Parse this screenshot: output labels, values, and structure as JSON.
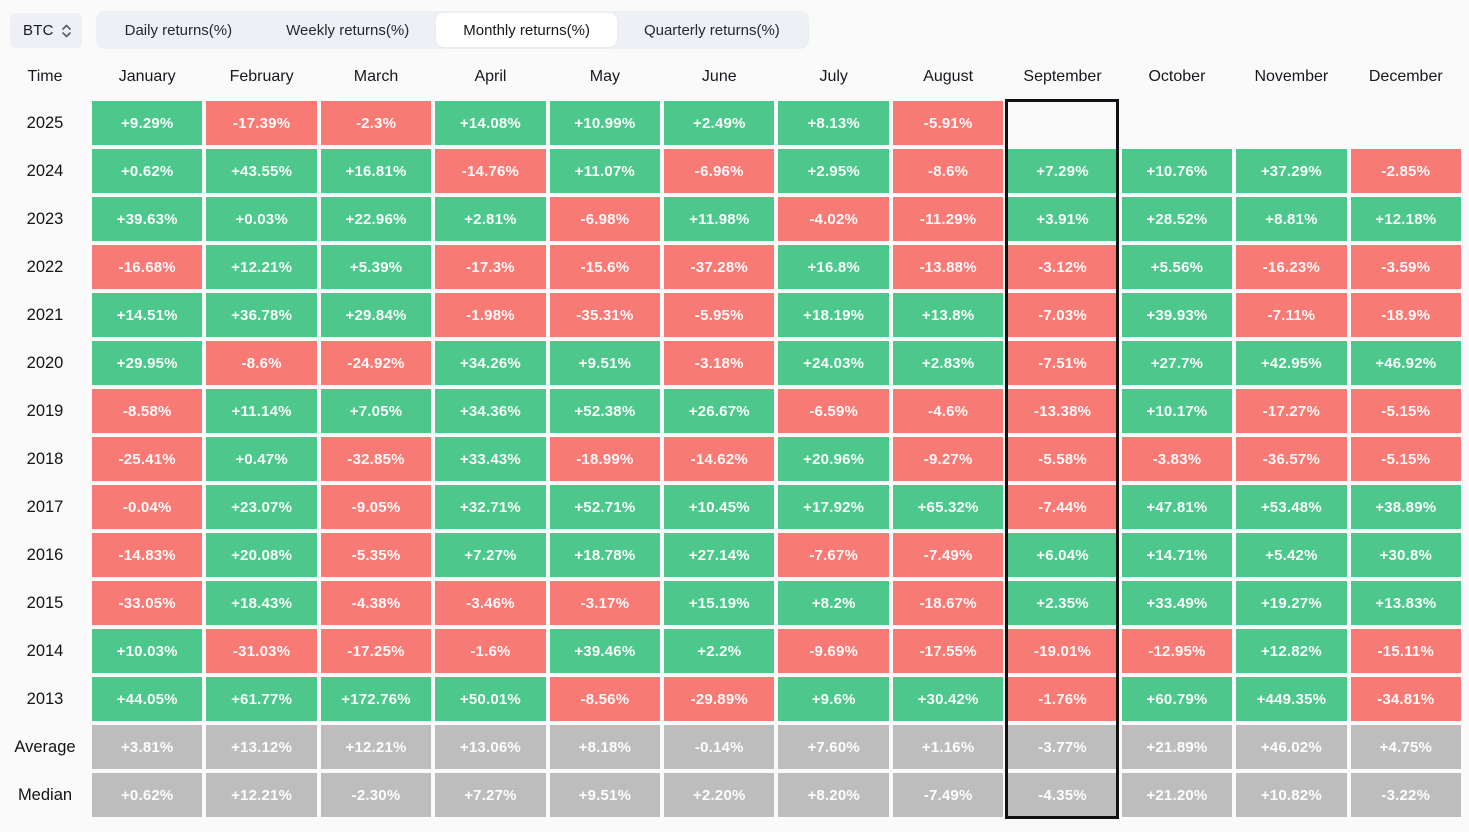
{
  "symbol_selector": {
    "label": "BTC",
    "icon": "up-down-chevron-icon"
  },
  "tabs": [
    {
      "label": "Daily returns(%)",
      "active": false
    },
    {
      "label": "Weekly returns(%)",
      "active": false
    },
    {
      "label": "Monthly returns(%)",
      "active": true
    },
    {
      "label": "Quarterly returns(%)",
      "active": false
    }
  ],
  "chart_data": {
    "type": "heatmap",
    "title": "Monthly returns(%)",
    "row_header": "Time",
    "columns": [
      "January",
      "February",
      "March",
      "April",
      "May",
      "June",
      "July",
      "August",
      "September",
      "October",
      "November",
      "December"
    ],
    "highlighted_column": "September",
    "colors": {
      "positive": "#4ec78c",
      "negative": "#f87a75",
      "summary": "#bdbdbd",
      "highlight_border": "#0f1114"
    },
    "rows": [
      {
        "label": "2025",
        "values": [
          "+9.29%",
          "-17.39%",
          "-2.3%",
          "+14.08%",
          "+10.99%",
          "+2.49%",
          "+8.13%",
          "-5.91%",
          "",
          "",
          "",
          ""
        ]
      },
      {
        "label": "2024",
        "values": [
          "+0.62%",
          "+43.55%",
          "+16.81%",
          "-14.76%",
          "+11.07%",
          "-6.96%",
          "+2.95%",
          "-8.6%",
          "+7.29%",
          "+10.76%",
          "+37.29%",
          "-2.85%"
        ]
      },
      {
        "label": "2023",
        "values": [
          "+39.63%",
          "+0.03%",
          "+22.96%",
          "+2.81%",
          "-6.98%",
          "+11.98%",
          "-4.02%",
          "-11.29%",
          "+3.91%",
          "+28.52%",
          "+8.81%",
          "+12.18%"
        ]
      },
      {
        "label": "2022",
        "values": [
          "-16.68%",
          "+12.21%",
          "+5.39%",
          "-17.3%",
          "-15.6%",
          "-37.28%",
          "+16.8%",
          "-13.88%",
          "-3.12%",
          "+5.56%",
          "-16.23%",
          "-3.59%"
        ]
      },
      {
        "label": "2021",
        "values": [
          "+14.51%",
          "+36.78%",
          "+29.84%",
          "-1.98%",
          "-35.31%",
          "-5.95%",
          "+18.19%",
          "+13.8%",
          "-7.03%",
          "+39.93%",
          "-7.11%",
          "-18.9%"
        ]
      },
      {
        "label": "2020",
        "values": [
          "+29.95%",
          "-8.6%",
          "-24.92%",
          "+34.26%",
          "+9.51%",
          "-3.18%",
          "+24.03%",
          "+2.83%",
          "-7.51%",
          "+27.7%",
          "+42.95%",
          "+46.92%"
        ]
      },
      {
        "label": "2019",
        "values": [
          "-8.58%",
          "+11.14%",
          "+7.05%",
          "+34.36%",
          "+52.38%",
          "+26.67%",
          "-6.59%",
          "-4.6%",
          "-13.38%",
          "+10.17%",
          "-17.27%",
          "-5.15%"
        ]
      },
      {
        "label": "2018",
        "values": [
          "-25.41%",
          "+0.47%",
          "-32.85%",
          "+33.43%",
          "-18.99%",
          "-14.62%",
          "+20.96%",
          "-9.27%",
          "-5.58%",
          "-3.83%",
          "-36.57%",
          "-5.15%"
        ]
      },
      {
        "label": "2017",
        "values": [
          "-0.04%",
          "+23.07%",
          "-9.05%",
          "+32.71%",
          "+52.71%",
          "+10.45%",
          "+17.92%",
          "+65.32%",
          "-7.44%",
          "+47.81%",
          "+53.48%",
          "+38.89%"
        ]
      },
      {
        "label": "2016",
        "values": [
          "-14.83%",
          "+20.08%",
          "-5.35%",
          "+7.27%",
          "+18.78%",
          "+27.14%",
          "-7.67%",
          "-7.49%",
          "+6.04%",
          "+14.71%",
          "+5.42%",
          "+30.8%"
        ]
      },
      {
        "label": "2015",
        "values": [
          "-33.05%",
          "+18.43%",
          "-4.38%",
          "-3.46%",
          "-3.17%",
          "+15.19%",
          "+8.2%",
          "-18.67%",
          "+2.35%",
          "+33.49%",
          "+19.27%",
          "+13.83%"
        ]
      },
      {
        "label": "2014",
        "values": [
          "+10.03%",
          "-31.03%",
          "-17.25%",
          "-1.6%",
          "+39.46%",
          "+2.2%",
          "-9.69%",
          "-17.55%",
          "-19.01%",
          "-12.95%",
          "+12.82%",
          "-15.11%"
        ]
      },
      {
        "label": "2013",
        "values": [
          "+44.05%",
          "+61.77%",
          "+172.76%",
          "+50.01%",
          "-8.56%",
          "-29.89%",
          "+9.6%",
          "+30.42%",
          "-1.76%",
          "+60.79%",
          "+449.35%",
          "-34.81%"
        ]
      },
      {
        "label": "Average",
        "summary": true,
        "values": [
          "+3.81%",
          "+13.12%",
          "+12.21%",
          "+13.06%",
          "+8.18%",
          "-0.14%",
          "+7.60%",
          "+1.16%",
          "-3.77%",
          "+21.89%",
          "+46.02%",
          "+4.75%"
        ]
      },
      {
        "label": "Median",
        "summary": true,
        "values": [
          "+0.62%",
          "+12.21%",
          "-2.30%",
          "+7.27%",
          "+9.51%",
          "+2.20%",
          "+8.20%",
          "-7.49%",
          "-4.35%",
          "+21.20%",
          "+10.82%",
          "-3.22%"
        ]
      }
    ]
  }
}
